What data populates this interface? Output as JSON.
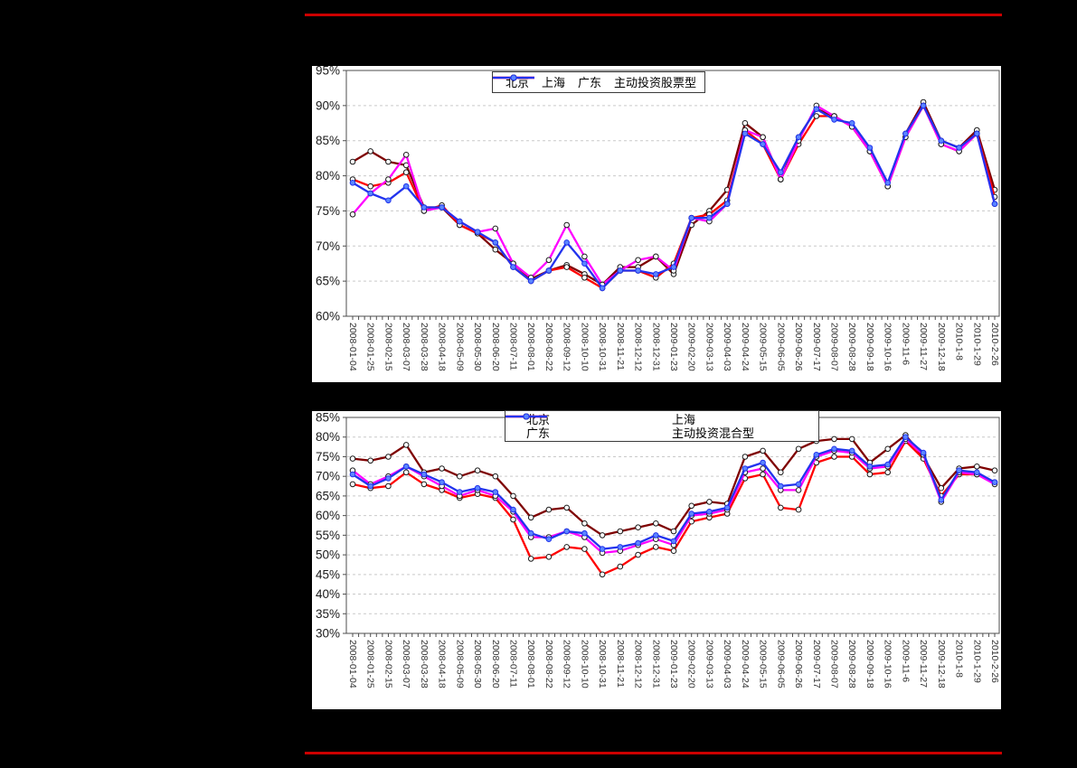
{
  "page": {
    "background": "#000000",
    "divider_color": "#cc0000",
    "panel_background": "#ffffff"
  },
  "chart_data": [
    {
      "type": "line",
      "title": "",
      "xlabel": "",
      "ylabel": "",
      "ylim": [
        60,
        95
      ],
      "ytick_step": 5,
      "y_tick_suffix": "%",
      "grid": "dashed-horizontal",
      "legend_position": "top-center-one-row",
      "categories": [
        "2008-01-04",
        "2008-01-25",
        "2008-02-15",
        "2008-03-07",
        "2008-03-28",
        "2008-04-18",
        "2008-05-09",
        "2008-05-30",
        "2008-06-20",
        "2008-07-11",
        "2008-08-01",
        "2008-08-22",
        "2008-09-12",
        "2008-10-10",
        "2008-10-31",
        "2008-11-21",
        "2008-12-12",
        "2008-12-31",
        "2009-01-23",
        "2009-02-20",
        "2009-03-13",
        "2009-04-03",
        "2009-04-24",
        "2009-05-15",
        "2009-06-05",
        "2009-06-26",
        "2009-07-17",
        "2009-08-07",
        "2009-08-28",
        "2009-09-18",
        "2009-10-16",
        "2009-11-6",
        "2009-11-27",
        "2009-12-18",
        "2010-1-8",
        "2010-1-29",
        "2010-2-26"
      ],
      "series": [
        {
          "name": "北京",
          "slug": "beijing",
          "color": "#7f0000",
          "marker": "open-circle",
          "values": [
            82,
            83.5,
            82,
            81.5,
            75.5,
            75.5,
            73,
            71.8,
            69.5,
            67.5,
            65.3,
            66.5,
            67.3,
            66,
            64.5,
            67,
            67,
            68.5,
            66,
            73,
            75,
            78,
            87.5,
            85.5,
            79.5,
            85.5,
            89.5,
            88.5,
            87,
            83.5,
            78.5,
            86,
            90.5,
            85,
            84,
            86.5,
            78
          ]
        },
        {
          "name": "上海",
          "slug": "shanghai",
          "color": "#ff0000",
          "marker": "open-circle",
          "values": [
            79.5,
            78.5,
            79,
            80.5,
            75,
            75.8,
            73,
            71.8,
            70.5,
            67,
            65,
            66.5,
            67,
            65.5,
            64,
            66.5,
            66.5,
            65.5,
            67.5,
            74,
            74.5,
            76.5,
            86.5,
            84.5,
            79.5,
            84.5,
            88.5,
            88.5,
            87,
            83.5,
            78.5,
            85.5,
            90,
            84.5,
            83.5,
            86,
            77
          ]
        },
        {
          "name": "广东",
          "slug": "guangdong",
          "color": "#ff00ff",
          "marker": "open-circle",
          "values": [
            74.5,
            77.5,
            79.5,
            83,
            75,
            75.5,
            73.5,
            72,
            72.5,
            67.5,
            65.5,
            68,
            73,
            68.5,
            64.5,
            66.5,
            68,
            68.5,
            66.5,
            74,
            73.5,
            76,
            86.5,
            85.5,
            79.5,
            85,
            90,
            88.5,
            87,
            83.5,
            78.5,
            85.5,
            90,
            84.5,
            83.5,
            86,
            76
          ]
        },
        {
          "name": "主动投资股票型",
          "slug": "active-stock",
          "color": "#2233ee",
          "marker": "filled-circle",
          "marker_fill": "#5b86ff",
          "values": [
            79,
            77.5,
            76.5,
            78.5,
            75.5,
            75.5,
            73.5,
            72,
            70.5,
            67,
            65,
            66.5,
            70.5,
            67.5,
            64,
            66.5,
            66.5,
            66,
            67,
            74,
            74,
            76,
            86,
            84.5,
            80.5,
            85.5,
            89.5,
            88,
            87.5,
            84,
            79,
            86,
            90,
            85,
            84,
            86,
            76
          ]
        }
      ]
    },
    {
      "type": "line",
      "title": "",
      "xlabel": "",
      "ylabel": "",
      "ylim": [
        30,
        85
      ],
      "ytick_step": 5,
      "y_tick_suffix": "%",
      "grid": "dashed-horizontal",
      "legend_position": "top-center-two-rows",
      "categories": [
        "2008-01-04",
        "2008-01-25",
        "2008-02-15",
        "2008-03-07",
        "2008-03-28",
        "2008-04-18",
        "2008-05-09",
        "2008-05-30",
        "2008-06-20",
        "2008-07-11",
        "2008-08-01",
        "2008-08-22",
        "2008-09-12",
        "2008-10-10",
        "2008-10-31",
        "2008-11-21",
        "2008-12-12",
        "2008-12-31",
        "2009-01-23",
        "2009-02-20",
        "2009-03-13",
        "2009-04-03",
        "2009-04-24",
        "2009-05-15",
        "2009-06-05",
        "2009-06-26",
        "2009-07-17",
        "2009-08-07",
        "2009-08-28",
        "2009-09-18",
        "2009-10-16",
        "2009-11-6",
        "2009-11-27",
        "2009-12-18",
        "2010-1-8",
        "2010-1-29",
        "2010-2-26"
      ],
      "series": [
        {
          "name": "北京",
          "slug": "beijing",
          "color": "#7f0000",
          "marker": "open-circle",
          "values": [
            74.5,
            74,
            75,
            78,
            71,
            72,
            70,
            71.5,
            70,
            65,
            59.5,
            61.5,
            62,
            58,
            55,
            56,
            57,
            58,
            56,
            62.5,
            63.5,
            63,
            75,
            76.5,
            71,
            77,
            79,
            79.5,
            79.5,
            73.5,
            77,
            80.5,
            75,
            67,
            72,
            72.5,
            71.5
          ]
        },
        {
          "name": "上海",
          "slug": "shanghai",
          "color": "#ff0000",
          "marker": "open-circle",
          "values": [
            68,
            67,
            67.5,
            71,
            68,
            66.5,
            64.5,
            65.5,
            64.5,
            59,
            49,
            49.5,
            52,
            51.5,
            45,
            47,
            50,
            52,
            51,
            58.5,
            59.5,
            60.5,
            69.5,
            70.5,
            62,
            61.5,
            73.5,
            75,
            75,
            70.5,
            71,
            79,
            74.5,
            65,
            70.5,
            70.5,
            68.5
          ]
        },
        {
          "name": "广东",
          "slug": "guangdong",
          "color": "#ff00ff",
          "marker": "open-circle",
          "values": [
            71.5,
            68,
            70,
            72.5,
            70,
            67.5,
            65,
            66.5,
            65,
            61,
            54.5,
            54.5,
            56,
            54.5,
            50.5,
            51,
            52.5,
            54,
            52.5,
            60,
            60.5,
            61.5,
            71,
            72,
            66.5,
            66.5,
            75,
            76.5,
            76,
            72,
            72.5,
            79.5,
            75.5,
            63.5,
            71,
            70.5,
            68
          ]
        },
        {
          "name": "主动投资混合型",
          "slug": "active-mixed",
          "color": "#2233ee",
          "marker": "filled-circle",
          "marker_fill": "#5b86ff",
          "values": [
            70.5,
            67.5,
            69.5,
            72.5,
            70.5,
            68.5,
            66,
            67,
            66,
            61.5,
            55.5,
            54,
            56,
            55.5,
            51.5,
            52,
            53,
            55,
            53.5,
            60.5,
            61,
            62,
            72,
            73.5,
            67.5,
            68,
            75.5,
            77,
            76.5,
            72.5,
            73,
            80,
            76,
            64,
            71.5,
            71,
            68.5
          ]
        }
      ]
    }
  ]
}
